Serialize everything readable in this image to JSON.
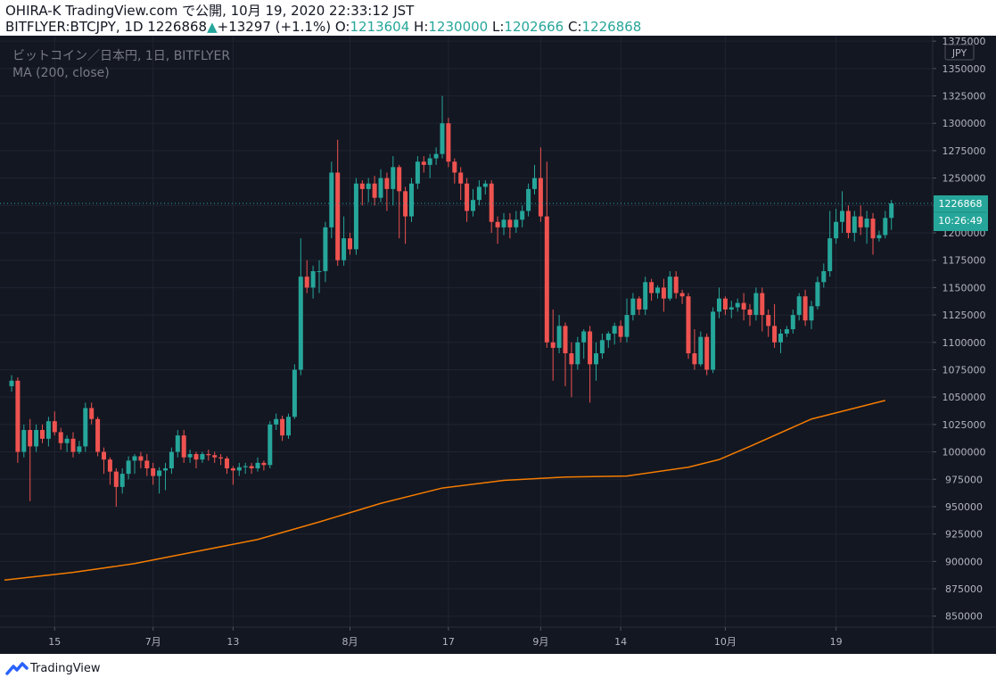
{
  "header": {
    "published": "OHIRA-K TradingView.com で公開, 10月 19, 2020 22:33:12 JST",
    "symbol_line": "BITFLYER:BTCJPY, 1D 1226868",
    "change_arrow": "▲",
    "change": "+13297 (+1.1%)",
    "o_label": "O:",
    "o_value": "1213604",
    "h_label": "H:",
    "h_value": "1230000",
    "l_label": "L:",
    "l_value": "1202666",
    "c_label": "C:",
    "c_value": "1226868"
  },
  "legend": {
    "instrument": "ビットコイン／日本円, 1日, BITFLYER",
    "indicator": "MA (200, close)"
  },
  "price_axis": {
    "currency": "JPY",
    "last_price": "1226868",
    "countdown": "10:26:49"
  },
  "footer": {
    "brand": "TradingView"
  },
  "colors": {
    "background": "#131722",
    "up": "#26a69a",
    "down": "#ef5350",
    "ma": "#f57c00",
    "grid": "#1f2431",
    "text": "#b2b5be"
  },
  "chart_data": {
    "type": "candlestick",
    "ylim": [
      840000,
      1380000
    ],
    "y_ticks": [
      850000,
      875000,
      900000,
      925000,
      950000,
      975000,
      1000000,
      1025000,
      1050000,
      1075000,
      1100000,
      1125000,
      1150000,
      1175000,
      1200000,
      1225000,
      1250000,
      1275000,
      1300000,
      1325000,
      1350000,
      1375000
    ],
    "x_ticks": [
      {
        "label": "15",
        "index": 7
      },
      {
        "label": "7月",
        "index": 23
      },
      {
        "label": "13",
        "index": 36
      },
      {
        "label": "8月",
        "index": 55
      },
      {
        "label": "17",
        "index": 71
      },
      {
        "label": "9月",
        "index": 86
      },
      {
        "label": "14",
        "index": 99
      },
      {
        "label": "10月",
        "index": 116
      },
      {
        "label": "19",
        "index": 134
      }
    ],
    "candles": [
      [
        1060000,
        1065000,
        1055000,
        1070000
      ],
      [
        1065000,
        1000000,
        990000,
        1068000
      ],
      [
        1000000,
        1020000,
        995000,
        1025000
      ],
      [
        1020000,
        1005000,
        955000,
        1030000
      ],
      [
        1005000,
        1020000,
        1000000,
        1025000
      ],
      [
        1020000,
        1012000,
        1008000,
        1025000
      ],
      [
        1012000,
        1028000,
        1005000,
        1032000
      ],
      [
        1028000,
        1018000,
        1015000,
        1037000
      ],
      [
        1018000,
        1008000,
        1002000,
        1022000
      ],
      [
        1008000,
        1012000,
        1000000,
        1015000
      ],
      [
        1012000,
        1000000,
        995000,
        1018000
      ],
      [
        1000000,
        1005000,
        998000,
        1010000
      ],
      [
        1005000,
        1040000,
        1000000,
        1045000
      ],
      [
        1040000,
        1030000,
        1025000,
        1045000
      ],
      [
        1030000,
        1000000,
        996000,
        1032000
      ],
      [
        1000000,
        993000,
        980000,
        1004000
      ],
      [
        993000,
        982000,
        970000,
        995000
      ],
      [
        982000,
        968000,
        950000,
        985000
      ],
      [
        968000,
        980000,
        962000,
        985000
      ],
      [
        980000,
        992000,
        975000,
        996000
      ],
      [
        992000,
        996000,
        980000,
        998000
      ],
      [
        996000,
        992000,
        985000,
        1000000
      ],
      [
        992000,
        985000,
        978000,
        998000
      ],
      [
        985000,
        978000,
        970000,
        990000
      ],
      [
        978000,
        983000,
        962000,
        986000
      ],
      [
        983000,
        985000,
        965000,
        990000
      ],
      [
        985000,
        1000000,
        980000,
        1004000
      ],
      [
        1000000,
        1015000,
        995000,
        1020000
      ],
      [
        1015000,
        995000,
        990000,
        1020000
      ],
      [
        995000,
        998000,
        990000,
        1002000
      ],
      [
        998000,
        993000,
        985000,
        1000000
      ],
      [
        993000,
        998000,
        990000,
        1000000
      ],
      [
        998000,
        997000,
        992000,
        1002000
      ],
      [
        997000,
        995000,
        990000,
        1000000
      ],
      [
        995000,
        994000,
        988000,
        998000
      ],
      [
        994000,
        985000,
        980000,
        996000
      ],
      [
        985000,
        983000,
        970000,
        987000
      ],
      [
        983000,
        986000,
        978000,
        990000
      ],
      [
        986000,
        987000,
        980000,
        990000
      ],
      [
        987000,
        985000,
        980000,
        990000
      ],
      [
        985000,
        990000,
        982000,
        995000
      ],
      [
        990000,
        988000,
        983000,
        992000
      ],
      [
        988000,
        1025000,
        985000,
        1028000
      ],
      [
        1025000,
        1030000,
        1020000,
        1035000
      ],
      [
        1030000,
        1015000,
        1010000,
        1033000
      ],
      [
        1015000,
        1032000,
        1012000,
        1035000
      ],
      [
        1032000,
        1075000,
        1030000,
        1080000
      ],
      [
        1075000,
        1160000,
        1070000,
        1195000
      ],
      [
        1160000,
        1150000,
        1145000,
        1175000
      ],
      [
        1150000,
        1165000,
        1140000,
        1170000
      ],
      [
        1165000,
        1165000,
        1145000,
        1175000
      ],
      [
        1165000,
        1205000,
        1155000,
        1210000
      ],
      [
        1205000,
        1255000,
        1195000,
        1265000
      ],
      [
        1255000,
        1175000,
        1170000,
        1285000
      ],
      [
        1175000,
        1195000,
        1170000,
        1215000
      ],
      [
        1195000,
        1185000,
        1180000,
        1200000
      ],
      [
        1185000,
        1245000,
        1180000,
        1250000
      ],
      [
        1245000,
        1240000,
        1225000,
        1248000
      ],
      [
        1240000,
        1245000,
        1228000,
        1250000
      ],
      [
        1245000,
        1232000,
        1225000,
        1252000
      ],
      [
        1232000,
        1250000,
        1228000,
        1258000
      ],
      [
        1250000,
        1240000,
        1220000,
        1255000
      ],
      [
        1240000,
        1260000,
        1225000,
        1270000
      ],
      [
        1260000,
        1238000,
        1195000,
        1262000
      ],
      [
        1238000,
        1215000,
        1190000,
        1242000
      ],
      [
        1215000,
        1245000,
        1210000,
        1250000
      ],
      [
        1245000,
        1265000,
        1240000,
        1270000
      ],
      [
        1265000,
        1262000,
        1255000,
        1270000
      ],
      [
        1262000,
        1268000,
        1250000,
        1272000
      ],
      [
        1268000,
        1272000,
        1262000,
        1278000
      ],
      [
        1272000,
        1300000,
        1268000,
        1325000
      ],
      [
        1300000,
        1265000,
        1260000,
        1305000
      ],
      [
        1265000,
        1255000,
        1245000,
        1268000
      ],
      [
        1255000,
        1245000,
        1230000,
        1260000
      ],
      [
        1245000,
        1220000,
        1210000,
        1250000
      ],
      [
        1220000,
        1230000,
        1215000,
        1240000
      ],
      [
        1230000,
        1242000,
        1225000,
        1248000
      ],
      [
        1242000,
        1245000,
        1235000,
        1248000
      ],
      [
        1245000,
        1210000,
        1200000,
        1248000
      ],
      [
        1210000,
        1205000,
        1190000,
        1215000
      ],
      [
        1205000,
        1212000,
        1198000,
        1218000
      ],
      [
        1212000,
        1205000,
        1195000,
        1218000
      ],
      [
        1205000,
        1212000,
        1200000,
        1220000
      ],
      [
        1212000,
        1220000,
        1205000,
        1225000
      ],
      [
        1220000,
        1240000,
        1215000,
        1245000
      ],
      [
        1240000,
        1250000,
        1235000,
        1262000
      ],
      [
        1250000,
        1215000,
        1210000,
        1278000
      ],
      [
        1215000,
        1100000,
        1095000,
        1265000
      ],
      [
        1100000,
        1095000,
        1065000,
        1130000
      ],
      [
        1095000,
        1115000,
        1090000,
        1125000
      ],
      [
        1115000,
        1090000,
        1060000,
        1118000
      ],
      [
        1090000,
        1080000,
        1050000,
        1100000
      ],
      [
        1080000,
        1100000,
        1075000,
        1105000
      ],
      [
        1100000,
        1110000,
        1085000,
        1112000
      ],
      [
        1110000,
        1080000,
        1045000,
        1115000
      ],
      [
        1080000,
        1090000,
        1065000,
        1100000
      ],
      [
        1090000,
        1102000,
        1085000,
        1108000
      ],
      [
        1102000,
        1108000,
        1095000,
        1110000
      ],
      [
        1108000,
        1115000,
        1098000,
        1118000
      ],
      [
        1115000,
        1105000,
        1100000,
        1120000
      ],
      [
        1105000,
        1125000,
        1100000,
        1140000
      ],
      [
        1125000,
        1140000,
        1120000,
        1145000
      ],
      [
        1140000,
        1130000,
        1125000,
        1142000
      ],
      [
        1130000,
        1155000,
        1125000,
        1160000
      ],
      [
        1155000,
        1145000,
        1138000,
        1158000
      ],
      [
        1145000,
        1150000,
        1140000,
        1152000
      ],
      [
        1150000,
        1140000,
        1128000,
        1158000
      ],
      [
        1140000,
        1160000,
        1138000,
        1165000
      ],
      [
        1160000,
        1145000,
        1140000,
        1165000
      ],
      [
        1145000,
        1142000,
        1135000,
        1148000
      ],
      [
        1142000,
        1090000,
        1085000,
        1145000
      ],
      [
        1090000,
        1080000,
        1075000,
        1112000
      ],
      [
        1080000,
        1105000,
        1078000,
        1110000
      ],
      [
        1105000,
        1075000,
        1070000,
        1108000
      ],
      [
        1075000,
        1128000,
        1072000,
        1132000
      ],
      [
        1128000,
        1140000,
        1122000,
        1150000
      ],
      [
        1140000,
        1130000,
        1125000,
        1142000
      ],
      [
        1130000,
        1132000,
        1122000,
        1138000
      ],
      [
        1132000,
        1136000,
        1128000,
        1140000
      ],
      [
        1136000,
        1130000,
        1120000,
        1145000
      ],
      [
        1130000,
        1125000,
        1115000,
        1135000
      ],
      [
        1125000,
        1145000,
        1120000,
        1150000
      ],
      [
        1145000,
        1125000,
        1110000,
        1150000
      ],
      [
        1125000,
        1115000,
        1105000,
        1130000
      ],
      [
        1115000,
        1100000,
        1095000,
        1135000
      ],
      [
        1100000,
        1108000,
        1090000,
        1112000
      ],
      [
        1108000,
        1112000,
        1105000,
        1115000
      ],
      [
        1112000,
        1125000,
        1108000,
        1130000
      ],
      [
        1125000,
        1142000,
        1120000,
        1145000
      ],
      [
        1142000,
        1120000,
        1115000,
        1148000
      ],
      [
        1120000,
        1133000,
        1112000,
        1138000
      ],
      [
        1133000,
        1155000,
        1130000,
        1160000
      ],
      [
        1155000,
        1165000,
        1150000,
        1172000
      ],
      [
        1165000,
        1195000,
        1160000,
        1220000
      ],
      [
        1195000,
        1210000,
        1190000,
        1222000
      ],
      [
        1210000,
        1220000,
        1200000,
        1238000
      ],
      [
        1220000,
        1200000,
        1195000,
        1225000
      ],
      [
        1200000,
        1215000,
        1192000,
        1220000
      ],
      [
        1215000,
        1205000,
        1198000,
        1225000
      ],
      [
        1205000,
        1213000,
        1190000,
        1220000
      ],
      [
        1213000,
        1195000,
        1180000,
        1218000
      ],
      [
        1195000,
        1198000,
        1192000,
        1202000
      ],
      [
        1198000,
        1213604,
        1195000,
        1220000
      ],
      [
        1213604,
        1226868,
        1202666,
        1230000
      ]
    ],
    "ma_points": [
      [
        0,
        883000
      ],
      [
        10,
        890000
      ],
      [
        20,
        898000
      ],
      [
        30,
        909000
      ],
      [
        40,
        920000
      ],
      [
        50,
        936000
      ],
      [
        60,
        953000
      ],
      [
        70,
        967000
      ],
      [
        80,
        974000
      ],
      [
        90,
        977000
      ],
      [
        100,
        978000
      ],
      [
        110,
        986000
      ],
      [
        115,
        993000
      ],
      [
        120,
        1005000
      ],
      [
        130,
        1030000
      ],
      [
        142,
        1047000
      ]
    ]
  }
}
